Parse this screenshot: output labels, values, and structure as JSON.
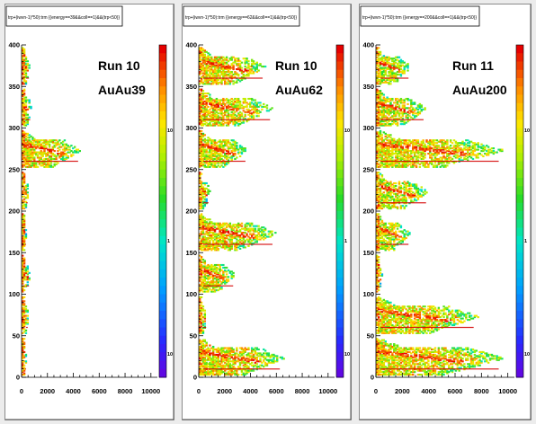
{
  "chart_data": [
    {
      "type": "heatmap",
      "title": "trp+(iwvn-1)*50):trm {(energy==39&&coll==1)&&(trp<50)}",
      "labels": [
        "Run 10",
        "AuAu39"
      ],
      "xlim": [
        0,
        10500
      ],
      "ylim": [
        0,
        400
      ],
      "x_ticks": [
        "0",
        "2000",
        "4000",
        "6000",
        "8000",
        "10000"
      ],
      "y_ticks": [
        "0",
        "50",
        "100",
        "150",
        "200",
        "250",
        "300",
        "350",
        "400"
      ],
      "colorbar_scale": "log",
      "colorbar_ticks": [
        "10",
        "1",
        "10"
      ],
      "bands": [
        {
          "y": 2,
          "xmax": 300,
          "intensity": 0.5
        },
        {
          "y": 52,
          "xmax": 500,
          "intensity": 0.6
        },
        {
          "y": 102,
          "xmax": 600,
          "intensity": 0.7
        },
        {
          "y": 152,
          "xmax": 300,
          "intensity": 0.4
        },
        {
          "y": 202,
          "xmax": 500,
          "intensity": 0.6
        },
        {
          "y": 252,
          "xmax": 4600,
          "intensity": 1.0
        },
        {
          "y": 302,
          "xmax": 700,
          "intensity": 0.7
        },
        {
          "y": 352,
          "xmax": 600,
          "intensity": 0.6
        }
      ]
    },
    {
      "type": "heatmap",
      "title": "trp+(iwvn-1)*50):trm {(energy==62&&coll==1)&&(trp<50)}",
      "labels": [
        "Run 10",
        "AuAu62"
      ],
      "xlim": [
        0,
        10500
      ],
      "ylim": [
        0,
        400
      ],
      "x_ticks": [
        "0",
        "2000",
        "4000",
        "6000",
        "8000",
        "10000"
      ],
      "y_ticks": [
        "0",
        "50",
        "100",
        "150",
        "200",
        "250",
        "300",
        "350",
        "400"
      ],
      "colorbar_scale": "log",
      "colorbar_ticks": [
        "10",
        "1",
        "10"
      ],
      "bands": [
        {
          "y": 2,
          "xmax": 6600,
          "intensity": 1.0
        },
        {
          "y": 52,
          "xmax": 600,
          "intensity": 0.5
        },
        {
          "y": 102,
          "xmax": 2800,
          "intensity": 0.9
        },
        {
          "y": 152,
          "xmax": 6000,
          "intensity": 1.0
        },
        {
          "y": 202,
          "xmax": 800,
          "intensity": 0.6
        },
        {
          "y": 252,
          "xmax": 3800,
          "intensity": 0.9
        },
        {
          "y": 302,
          "xmax": 5800,
          "intensity": 1.0
        },
        {
          "y": 352,
          "xmax": 5200,
          "intensity": 1.0
        }
      ]
    },
    {
      "type": "heatmap",
      "title": "trp+(iwvn-1)*50):trm {(energy==200&&coll==1)&&(trp<50)}",
      "labels": [
        "Run 11",
        "AuAu200"
      ],
      "xlim": [
        0,
        10500
      ],
      "ylim": [
        0,
        400
      ],
      "x_ticks": [
        "0",
        "2000",
        "4000",
        "6000",
        "8000",
        "10000"
      ],
      "y_ticks": [
        "0",
        "50",
        "100",
        "150",
        "200",
        "250",
        "300",
        "350",
        "400"
      ],
      "colorbar_scale": "log",
      "colorbar_ticks": [
        "10",
        "1",
        "10"
      ],
      "bands": [
        {
          "y": 2,
          "xmax": 9800,
          "intensity": 1.0
        },
        {
          "y": 52,
          "xmax": 7800,
          "intensity": 1.0
        },
        {
          "y": 102,
          "xmax": 400,
          "intensity": 0.5
        },
        {
          "y": 152,
          "xmax": 2600,
          "intensity": 0.8
        },
        {
          "y": 202,
          "xmax": 4000,
          "intensity": 0.9
        },
        {
          "y": 252,
          "xmax": 9800,
          "intensity": 1.0
        },
        {
          "y": 302,
          "xmax": 3800,
          "intensity": 0.9
        },
        {
          "y": 352,
          "xmax": 2600,
          "intensity": 0.8
        }
      ]
    }
  ]
}
